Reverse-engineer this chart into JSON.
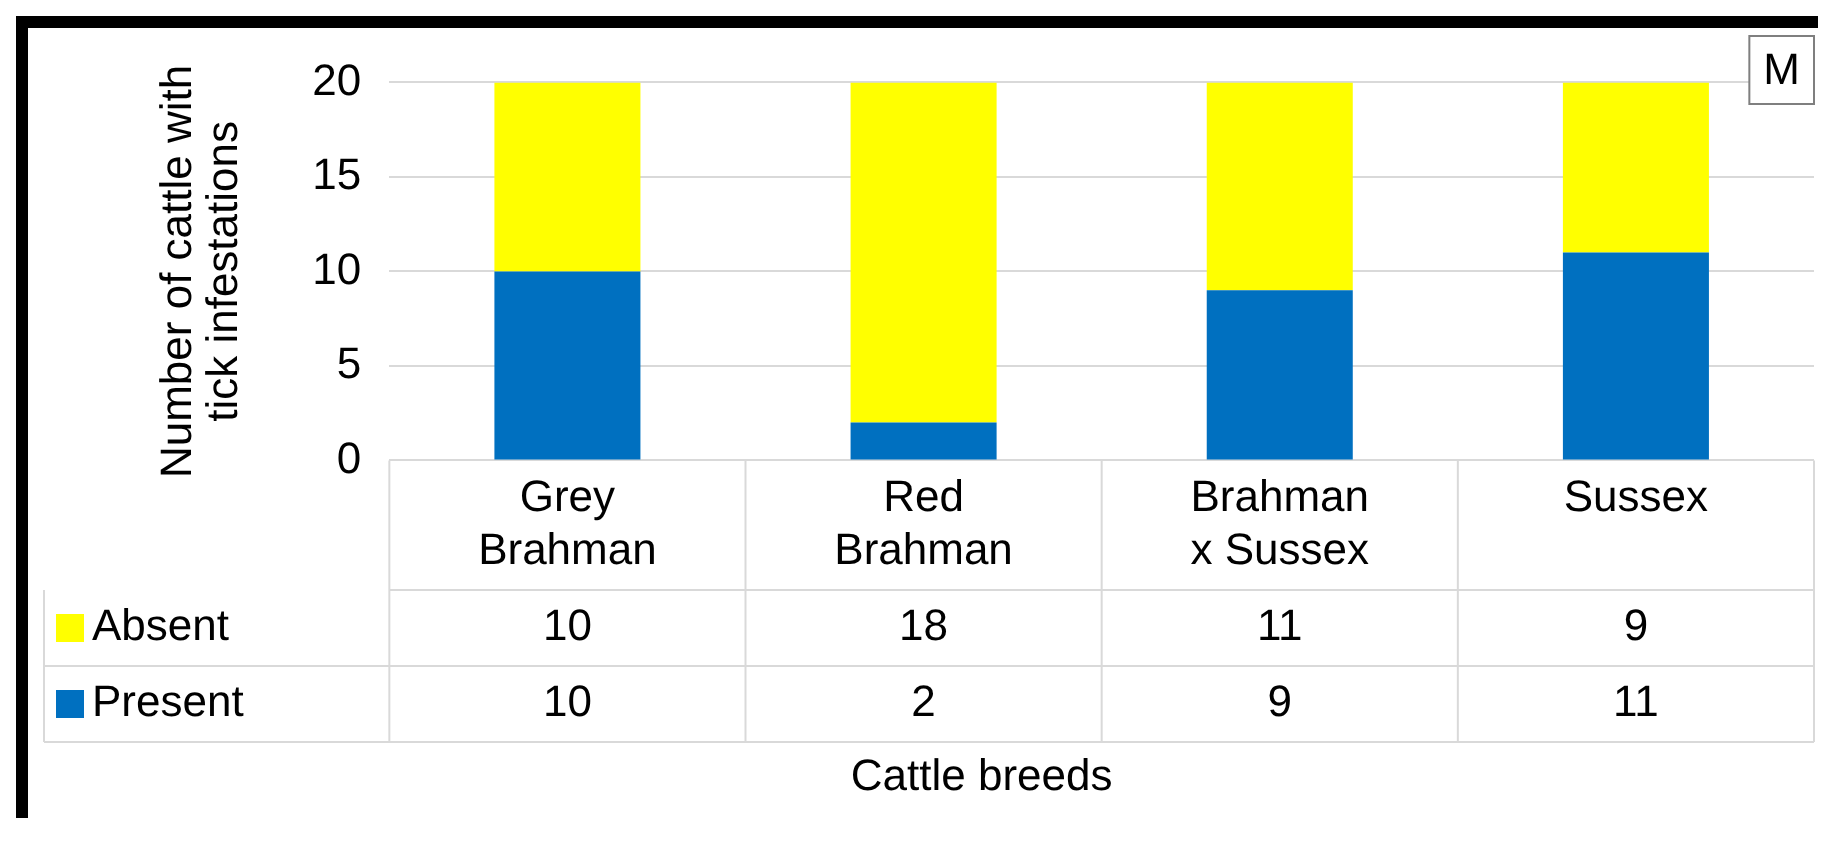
{
  "chart_data": {
    "type": "bar",
    "stacked": true,
    "ylabel": "Number of cattle with tick infestations",
    "xlabel": "Cattle breeds",
    "categories": [
      "Grey Brahman",
      "Red Brahman",
      "Brahman x Sussex",
      "Sussex"
    ],
    "series": [
      {
        "name": "Present",
        "color": "#0070c0",
        "values": [
          10,
          2,
          9,
          11
        ]
      },
      {
        "name": "Absent",
        "color": "#ffff00",
        "values": [
          10,
          18,
          11,
          9
        ]
      }
    ],
    "ylim": [
      0,
      20
    ],
    "yticks": [
      0,
      5,
      10,
      15,
      20
    ],
    "grid": "y",
    "legend": "bottom left",
    "data_labels": true,
    "annotations": [
      "M"
    ]
  }
}
